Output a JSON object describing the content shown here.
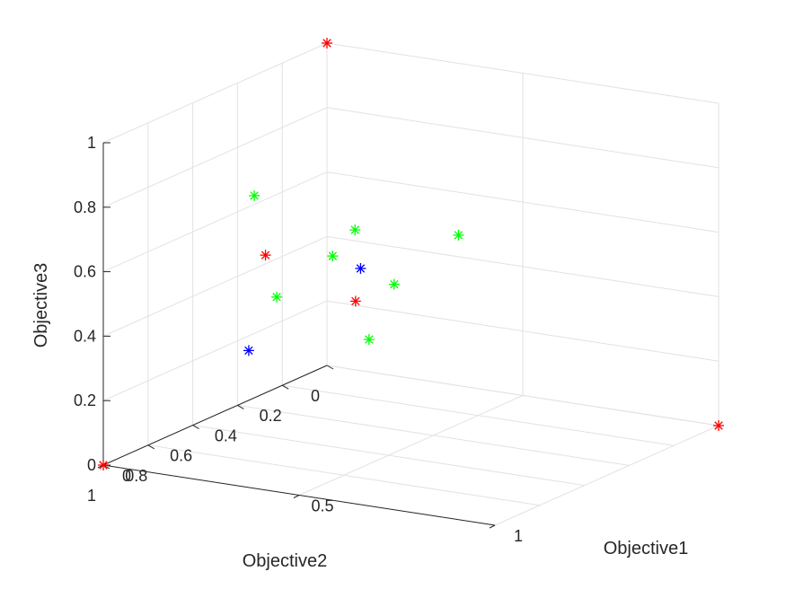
{
  "chart_data": {
    "type": "scatter",
    "dimensions": 3,
    "title": "",
    "xlabel": "Objective1",
    "ylabel": "Objective2",
    "zlabel": "Objective3",
    "xlim": [
      0,
      1
    ],
    "ylim": [
      0,
      1
    ],
    "zlim": [
      0,
      1
    ],
    "xticks": [
      "0",
      "0.5",
      "1"
    ],
    "yticks": [
      "0",
      "0.2",
      "0.4",
      "0.6",
      "0.8",
      "1"
    ],
    "zticks": [
      "0",
      "0.2",
      "0.4",
      "0.6",
      "0.8",
      "1"
    ],
    "grid": true,
    "marker": "*",
    "series": [
      {
        "color": "#ff0000",
        "points": [
          {
            "x": 0,
            "y": 0,
            "z": 1
          },
          {
            "x": 1,
            "y": 0,
            "z": 0
          },
          {
            "x": 0,
            "y": 1,
            "z": 0
          },
          {
            "x": 0.33,
            "y": 0.45,
            "z": 0.4
          },
          {
            "x": 0.1,
            "y": 0.45,
            "z": 0.5
          }
        ]
      },
      {
        "color": "#00ff00",
        "points": [
          {
            "x": 0.1,
            "y": 0.5,
            "z": 0.7
          },
          {
            "x": 0.45,
            "y": 0.2,
            "z": 0.55
          },
          {
            "x": 0.3,
            "y": 0.4,
            "z": 0.6
          },
          {
            "x": 0.3,
            "y": 0.5,
            "z": 0.55
          },
          {
            "x": 0.45,
            "y": 0.6,
            "z": 0.35
          },
          {
            "x": 0.4,
            "y": 0.4,
            "z": 0.45
          },
          {
            "x": 0.3,
            "y": 0.75,
            "z": 0.5
          }
        ]
      },
      {
        "color": "#0000ff",
        "points": [
          {
            "x": 0.2,
            "y": 0.2,
            "z": 0.4
          },
          {
            "x": 0.2,
            "y": 0.7,
            "z": 0.3
          }
        ]
      }
    ]
  }
}
